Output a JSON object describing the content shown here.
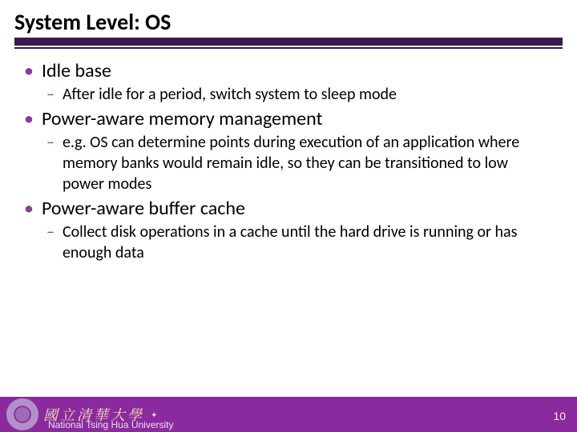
{
  "colors": {
    "accent_purple": "#8b2a9e",
    "dark_bar": "#3a1a4a",
    "bullet_purple": "#8b3a9e",
    "footer_text": "#e8e0ee",
    "footer_gold": "#efe2b8",
    "page_num": "#f5f0e6"
  },
  "title": "System Level: OS",
  "bullets": [
    {
      "text": "Idle base",
      "sub": [
        "After idle for a period, switch system to sleep mode"
      ]
    },
    {
      "text": "Power-aware memory management",
      "sub": [
        "e.g. OS can determine points during execution of an application where memory banks would remain idle, so they can be transitioned to low power modes"
      ]
    },
    {
      "text": "Power-aware buffer cache",
      "sub": [
        "Collect disk operations in a cache until the hard drive is running or has enough data"
      ]
    }
  ],
  "footer": {
    "institution": "National Tsing Hua University",
    "calligraphy": "國立清華大學"
  },
  "page_number": "10"
}
